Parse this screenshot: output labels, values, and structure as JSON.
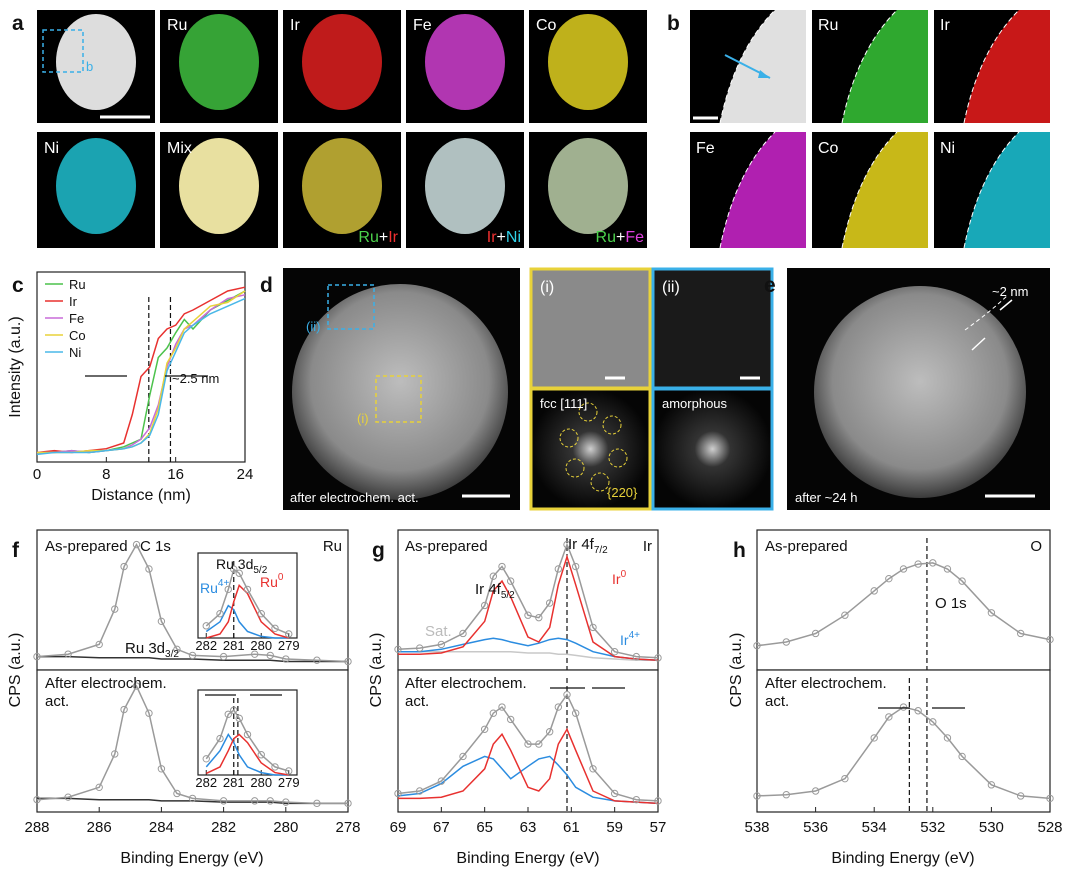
{
  "panel_labels": [
    "a",
    "b",
    "c",
    "d",
    "e",
    "f",
    "g",
    "h"
  ],
  "panel_a": {
    "tile_labels": [
      "Ru",
      "Ir",
      "Fe",
      "Co",
      "Ni",
      "Mix"
    ],
    "box_label": "b",
    "mix_labels": [
      [
        "Ru",
        "+",
        "Ir"
      ],
      [
        "Ir",
        "+",
        "Ni"
      ],
      [
        "Ru",
        "+",
        "Fe"
      ]
    ]
  },
  "panel_b": {
    "tile_labels": [
      "Ru",
      "Ir",
      "Fe",
      "Co",
      "Ni"
    ]
  },
  "panel_d": {
    "box_labels": [
      "(ii)",
      "(i)"
    ],
    "caption": "after electrochem. act.",
    "inset_labels": [
      "(i)",
      "(ii)",
      "fcc [111]",
      "amorphous"
    ],
    "spot_label": "{220}"
  },
  "panel_e": {
    "annotation": "~2 nm",
    "caption": "after ~24 h"
  },
  "chart_data": [
    {
      "type": "line",
      "xlabel": "Distance (nm)",
      "ylabel": "Intensity (a.u.)",
      "legend": "upper left",
      "x": [
        0,
        2,
        4,
        6,
        8,
        10,
        11,
        12,
        13,
        14,
        15,
        16,
        17,
        18,
        20,
        22,
        24
      ],
      "xlim": [
        0,
        24
      ],
      "xticks": [
        0,
        8,
        16,
        24
      ],
      "ylim": [
        0,
        1
      ],
      "vlines": [
        12.9,
        15.4
      ],
      "annotation": "~2.5 nm",
      "series": [
        {
          "name": "Ru",
          "color": "#4cc24c",
          "values": [
            0.05,
            0.05,
            0.06,
            0.05,
            0.06,
            0.08,
            0.1,
            0.12,
            0.35,
            0.55,
            0.6,
            0.68,
            0.75,
            0.7,
            0.8,
            0.85,
            0.9
          ]
        },
        {
          "name": "Ir",
          "color": "#e8312f",
          "values": [
            0.05,
            0.06,
            0.05,
            0.06,
            0.07,
            0.1,
            0.25,
            0.45,
            0.5,
            0.65,
            0.7,
            0.72,
            0.78,
            0.8,
            0.85,
            0.9,
            0.92
          ]
        },
        {
          "name": "Fe",
          "color": "#c86bd8",
          "values": [
            0.05,
            0.05,
            0.06,
            0.05,
            0.06,
            0.07,
            0.09,
            0.12,
            0.18,
            0.3,
            0.5,
            0.62,
            0.7,
            0.72,
            0.8,
            0.86,
            0.88
          ]
        },
        {
          "name": "Co",
          "color": "#e8d23a",
          "values": [
            0.05,
            0.05,
            0.05,
            0.06,
            0.06,
            0.07,
            0.08,
            0.1,
            0.15,
            0.28,
            0.52,
            0.6,
            0.7,
            0.74,
            0.82,
            0.84,
            0.9
          ]
        },
        {
          "name": "Ni",
          "color": "#4ab8e8",
          "values": [
            0.04,
            0.05,
            0.05,
            0.05,
            0.06,
            0.07,
            0.08,
            0.1,
            0.14,
            0.25,
            0.48,
            0.58,
            0.68,
            0.72,
            0.78,
            0.82,
            0.86
          ]
        }
      ]
    },
    {
      "type": "line",
      "state": "As-prepared",
      "peak": "C 1s",
      "element": "Ru",
      "minor_peak": [
        "Ru 3d",
        "3/2"
      ],
      "ylabel": "CPS (a.u.)",
      "x": [
        288,
        287,
        286,
        285.5,
        285.2,
        284.8,
        284.4,
        284,
        283.5,
        283,
        282,
        281,
        280.5,
        280,
        279,
        278
      ],
      "xlim": [
        288,
        278
      ],
      "ylim": [
        -0.05,
        1.1
      ],
      "series": [
        {
          "color": "#333333",
          "values": [
            0.06,
            0.06,
            0.05,
            0.05,
            0.05,
            0.05,
            0.05,
            0.04,
            0.04,
            0.04,
            0.03,
            0.03,
            0.03,
            0.02,
            0.02,
            0.02
          ]
        },
        {
          "color": "#9a9a9a",
          "markers": true,
          "values": [
            0.06,
            0.08,
            0.16,
            0.45,
            0.8,
            0.98,
            0.78,
            0.35,
            0.12,
            0.07,
            0.06,
            0.08,
            0.07,
            0.04,
            0.03,
            0.02
          ]
        }
      ]
    },
    {
      "type": "line",
      "title": [
        "Ru 3d",
        "5/2"
      ],
      "component_labels": [
        [
          "Ru",
          "4+"
        ],
        [
          "Ru",
          "0"
        ]
      ],
      "x": [
        282,
        281.5,
        281.2,
        281,
        280.8,
        280.5,
        280,
        279.5,
        279
      ],
      "xlim": [
        282.3,
        278.7
      ],
      "xticks": [
        282,
        281,
        280,
        279
      ],
      "ylim": [
        0,
        1.05
      ],
      "vlines": [
        281.0
      ],
      "series": [
        {
          "color": "#2b8ce0",
          "values": [
            0.08,
            0.2,
            0.4,
            0.35,
            0.2,
            0.08,
            0.02,
            0,
            0
          ]
        },
        {
          "color": "#e8312f",
          "values": [
            0,
            0.05,
            0.2,
            0.45,
            0.65,
            0.55,
            0.2,
            0.05,
            0
          ]
        },
        {
          "color": "#9a9a9a",
          "markers": true,
          "values": [
            0.15,
            0.3,
            0.6,
            0.85,
            0.8,
            0.6,
            0.3,
            0.12,
            0.05
          ]
        }
      ]
    },
    {
      "type": "line",
      "state": [
        "After electrochem.",
        "act."
      ],
      "xlabel": "Binding Energy (eV)",
      "x": [
        288,
        287,
        286,
        285.5,
        285.2,
        284.8,
        284.4,
        284,
        283.5,
        283,
        282,
        281,
        280.5,
        280,
        279,
        278
      ],
      "xlim": [
        288,
        278
      ],
      "xticks": [
        288,
        286,
        284,
        282,
        280,
        278
      ],
      "ylim": [
        -0.05,
        1.1
      ],
      "series": [
        {
          "color": "#333333",
          "values": [
            0.06,
            0.06,
            0.05,
            0.05,
            0.05,
            0.05,
            0.05,
            0.04,
            0.04,
            0.04,
            0.03,
            0.03,
            0.03,
            0.02,
            0.02,
            0.02
          ]
        },
        {
          "color": "#9a9a9a",
          "markers": true,
          "values": [
            0.05,
            0.07,
            0.15,
            0.42,
            0.78,
            0.97,
            0.75,
            0.3,
            0.1,
            0.06,
            0.04,
            0.04,
            0.04,
            0.03,
            0.02,
            0.02
          ]
        }
      ]
    },
    {
      "type": "line",
      "x": [
        282,
        281.5,
        281.2,
        281,
        280.8,
        280.5,
        280,
        279.5,
        279
      ],
      "xlim": [
        282.3,
        278.7
      ],
      "xticks": [
        282,
        281,
        280,
        279
      ],
      "ylim": [
        0,
        1.05
      ],
      "vlines": [
        281.0,
        280.85
      ],
      "series": [
        {
          "color": "#2b8ce0",
          "values": [
            0.1,
            0.3,
            0.5,
            0.4,
            0.25,
            0.1,
            0.03,
            0,
            0
          ]
        },
        {
          "color": "#e8312f",
          "values": [
            0.02,
            0.1,
            0.3,
            0.45,
            0.5,
            0.4,
            0.15,
            0.03,
            0
          ]
        },
        {
          "color": "#9a9a9a",
          "markers": true,
          "values": [
            0.2,
            0.45,
            0.75,
            0.8,
            0.7,
            0.5,
            0.25,
            0.1,
            0.05
          ]
        }
      ]
    },
    {
      "type": "line",
      "state": "As-prepared",
      "peaks": [
        [
          "Ir 4f",
          "5/2"
        ],
        [
          "Ir 4f",
          "7/2"
        ]
      ],
      "element": "Ir",
      "satellite": "Sat.",
      "component_labels": [
        [
          "Ir",
          "0"
        ],
        [
          "Ir",
          "4+"
        ]
      ],
      "ylabel": "CPS (a.u.)",
      "x": [
        69,
        68,
        67,
        66,
        65,
        64.6,
        64.2,
        63.8,
        63,
        62.5,
        62,
        61.6,
        61.2,
        60.8,
        60,
        59,
        58,
        57
      ],
      "xlim": [
        69,
        57
      ],
      "ylim": [
        -0.05,
        1.1
      ],
      "vlines": [
        61.2
      ],
      "series": [
        {
          "color": "#c8c8c8",
          "values": [
            0.1,
            0.1,
            0.1,
            0.1,
            0.1,
            0.1,
            0.1,
            0.1,
            0.09,
            0.09,
            0.09,
            0.08,
            0.08,
            0.07,
            0.05,
            0.04,
            0.03,
            0.03
          ]
        },
        {
          "color": "#2b8ce0",
          "values": [
            0.1,
            0.1,
            0.12,
            0.16,
            0.2,
            0.21,
            0.2,
            0.18,
            0.15,
            0.17,
            0.2,
            0.21,
            0.2,
            0.17,
            0.1,
            0.06,
            0.04,
            0.03
          ]
        },
        {
          "color": "#e8312f",
          "values": [
            0.08,
            0.08,
            0.09,
            0.14,
            0.35,
            0.6,
            0.68,
            0.55,
            0.22,
            0.18,
            0.3,
            0.65,
            0.88,
            0.65,
            0.18,
            0.06,
            0.04,
            0.03
          ]
        },
        {
          "color": "#9a9a9a",
          "markers": true,
          "values": [
            0.12,
            0.13,
            0.16,
            0.25,
            0.48,
            0.72,
            0.8,
            0.68,
            0.4,
            0.38,
            0.5,
            0.78,
            0.98,
            0.8,
            0.3,
            0.1,
            0.06,
            0.05
          ]
        }
      ]
    },
    {
      "type": "line",
      "state": [
        "After electrochem.",
        "act."
      ],
      "xlabel": "Binding Energy (eV)",
      "x": [
        69,
        68,
        67,
        66,
        65,
        64.6,
        64.2,
        63.8,
        63,
        62.5,
        62,
        61.6,
        61.2,
        60.8,
        60,
        59,
        58,
        57
      ],
      "xlim": [
        69,
        57
      ],
      "xticks": [
        69,
        67,
        65,
        63,
        61,
        59,
        57
      ],
      "ylim": [
        -0.05,
        1.1
      ],
      "vlines": [
        61.2
      ],
      "series": [
        {
          "color": "#2b8ce0",
          "values": [
            0.08,
            0.1,
            0.18,
            0.32,
            0.4,
            0.38,
            0.3,
            0.22,
            0.32,
            0.38,
            0.4,
            0.33,
            0.25,
            0.15,
            0.07,
            0.04,
            0.03,
            0.02
          ]
        },
        {
          "color": "#e8312f",
          "values": [
            0.06,
            0.06,
            0.07,
            0.12,
            0.3,
            0.5,
            0.58,
            0.45,
            0.15,
            0.12,
            0.22,
            0.5,
            0.62,
            0.45,
            0.12,
            0.04,
            0.03,
            0.02
          ]
        },
        {
          "color": "#9a9a9a",
          "markers": true,
          "values": [
            0.1,
            0.12,
            0.2,
            0.4,
            0.62,
            0.75,
            0.8,
            0.7,
            0.5,
            0.5,
            0.6,
            0.8,
            0.9,
            0.75,
            0.3,
            0.1,
            0.05,
            0.04
          ]
        }
      ]
    },
    {
      "type": "line",
      "state": "As-prepared",
      "element": "O",
      "peak": "O 1s",
      "ylabel": "CPS (a.u.)",
      "x": [
        538,
        537,
        536,
        535,
        534,
        533.5,
        533,
        532.5,
        532,
        531.5,
        531,
        530,
        529,
        528
      ],
      "xlim": [
        538,
        528
      ],
      "ylim": [
        -0.05,
        1.1
      ],
      "vlines": [
        532.2
      ],
      "series": [
        {
          "color": "#9a9a9a",
          "markers": true,
          "values": [
            0.15,
            0.18,
            0.25,
            0.4,
            0.6,
            0.7,
            0.78,
            0.82,
            0.83,
            0.78,
            0.68,
            0.42,
            0.25,
            0.2
          ]
        }
      ]
    },
    {
      "type": "line",
      "state": [
        "After electrochem.",
        "act."
      ],
      "xlabel": "Binding Energy (eV)",
      "x": [
        538,
        537,
        536,
        535,
        534,
        533.5,
        533,
        532.5,
        532,
        531.5,
        531,
        530,
        529,
        528
      ],
      "xlim": [
        538,
        528
      ],
      "xticks": [
        538,
        536,
        534,
        532,
        530,
        528
      ],
      "ylim": [
        -0.05,
        1.1
      ],
      "vlines": [
        532.8,
        532.2
      ],
      "series": [
        {
          "color": "#9a9a9a",
          "markers": true,
          "values": [
            0.08,
            0.09,
            0.12,
            0.22,
            0.55,
            0.72,
            0.8,
            0.77,
            0.68,
            0.55,
            0.4,
            0.17,
            0.08,
            0.06
          ]
        }
      ]
    }
  ]
}
